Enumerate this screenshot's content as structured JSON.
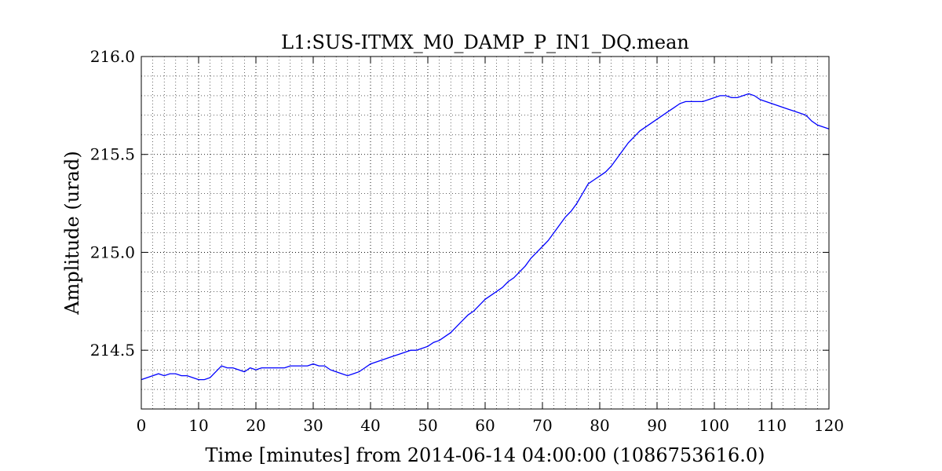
{
  "chart_data": {
    "type": "line",
    "title": "L1:SUS-ITMX_M0_DAMP_P_IN1_DQ.mean",
    "xlabel": "Time [minutes] from 2014-06-14 04:00:00 (1086753616.0)",
    "ylabel": "Amplitude (urad)",
    "xlim": [
      0,
      120
    ],
    "ylim": [
      214.2,
      216.0
    ],
    "xticks": [
      0,
      10,
      20,
      30,
      40,
      50,
      60,
      70,
      80,
      90,
      100,
      110,
      120
    ],
    "yticks": [
      214.5,
      215.0,
      215.5,
      216.0
    ],
    "ytick_labels": [
      "214.5",
      "215.0",
      "215.5",
      "216.0"
    ],
    "grid": "dotted, major and minor",
    "series": [
      {
        "color": "#0000ff",
        "x": [
          0,
          1,
          2,
          3,
          4,
          5,
          6,
          7,
          8,
          9,
          10,
          11,
          12,
          13,
          14,
          15,
          16,
          17,
          18,
          19,
          20,
          21,
          22,
          23,
          24,
          25,
          26,
          27,
          28,
          29,
          30,
          31,
          32,
          33,
          34,
          35,
          36,
          37,
          38,
          39,
          40,
          41,
          42,
          43,
          44,
          45,
          46,
          47,
          48,
          49,
          50,
          51,
          52,
          53,
          54,
          55,
          56,
          57,
          58,
          59,
          60,
          61,
          62,
          63,
          64,
          65,
          66,
          67,
          68,
          69,
          70,
          71,
          72,
          73,
          74,
          75,
          76,
          77,
          78,
          79,
          80,
          81,
          82,
          83,
          84,
          85,
          86,
          87,
          88,
          89,
          90,
          91,
          92,
          93,
          94,
          95,
          96,
          97,
          98,
          99,
          100,
          101,
          102,
          103,
          104,
          105,
          106,
          107,
          108,
          109,
          110,
          111,
          112,
          113,
          114,
          115,
          116,
          117,
          118,
          119,
          120
        ],
        "y": [
          214.35,
          214.36,
          214.37,
          214.38,
          214.37,
          214.38,
          214.38,
          214.37,
          214.37,
          214.36,
          214.35,
          214.35,
          214.36,
          214.39,
          214.42,
          214.41,
          214.41,
          214.4,
          214.39,
          214.41,
          214.4,
          214.41,
          214.41,
          214.41,
          214.41,
          214.41,
          214.42,
          214.42,
          214.42,
          214.42,
          214.43,
          214.42,
          214.42,
          214.4,
          214.39,
          214.38,
          214.37,
          214.38,
          214.39,
          214.41,
          214.43,
          214.44,
          214.45,
          214.46,
          214.47,
          214.48,
          214.49,
          214.5,
          214.5,
          214.51,
          214.52,
          214.54,
          214.55,
          214.57,
          214.59,
          214.62,
          214.65,
          214.68,
          214.7,
          214.73,
          214.76,
          214.78,
          214.8,
          214.82,
          214.85,
          214.87,
          214.9,
          214.93,
          214.97,
          215.0,
          215.03,
          215.06,
          215.1,
          215.14,
          215.18,
          215.21,
          215.25,
          215.3,
          215.35,
          215.37,
          215.39,
          215.41,
          215.44,
          215.48,
          215.52,
          215.56,
          215.59,
          215.62,
          215.64,
          215.66,
          215.68,
          215.7,
          215.72,
          215.74,
          215.76,
          215.77,
          215.77,
          215.77,
          215.77,
          215.78,
          215.79,
          215.8,
          215.8,
          215.79,
          215.79,
          215.8,
          215.81,
          215.8,
          215.78,
          215.77,
          215.76,
          215.75,
          215.74,
          215.73,
          215.72,
          215.71,
          215.7,
          215.67,
          215.65,
          215.64,
          215.63
        ]
      }
    ]
  }
}
